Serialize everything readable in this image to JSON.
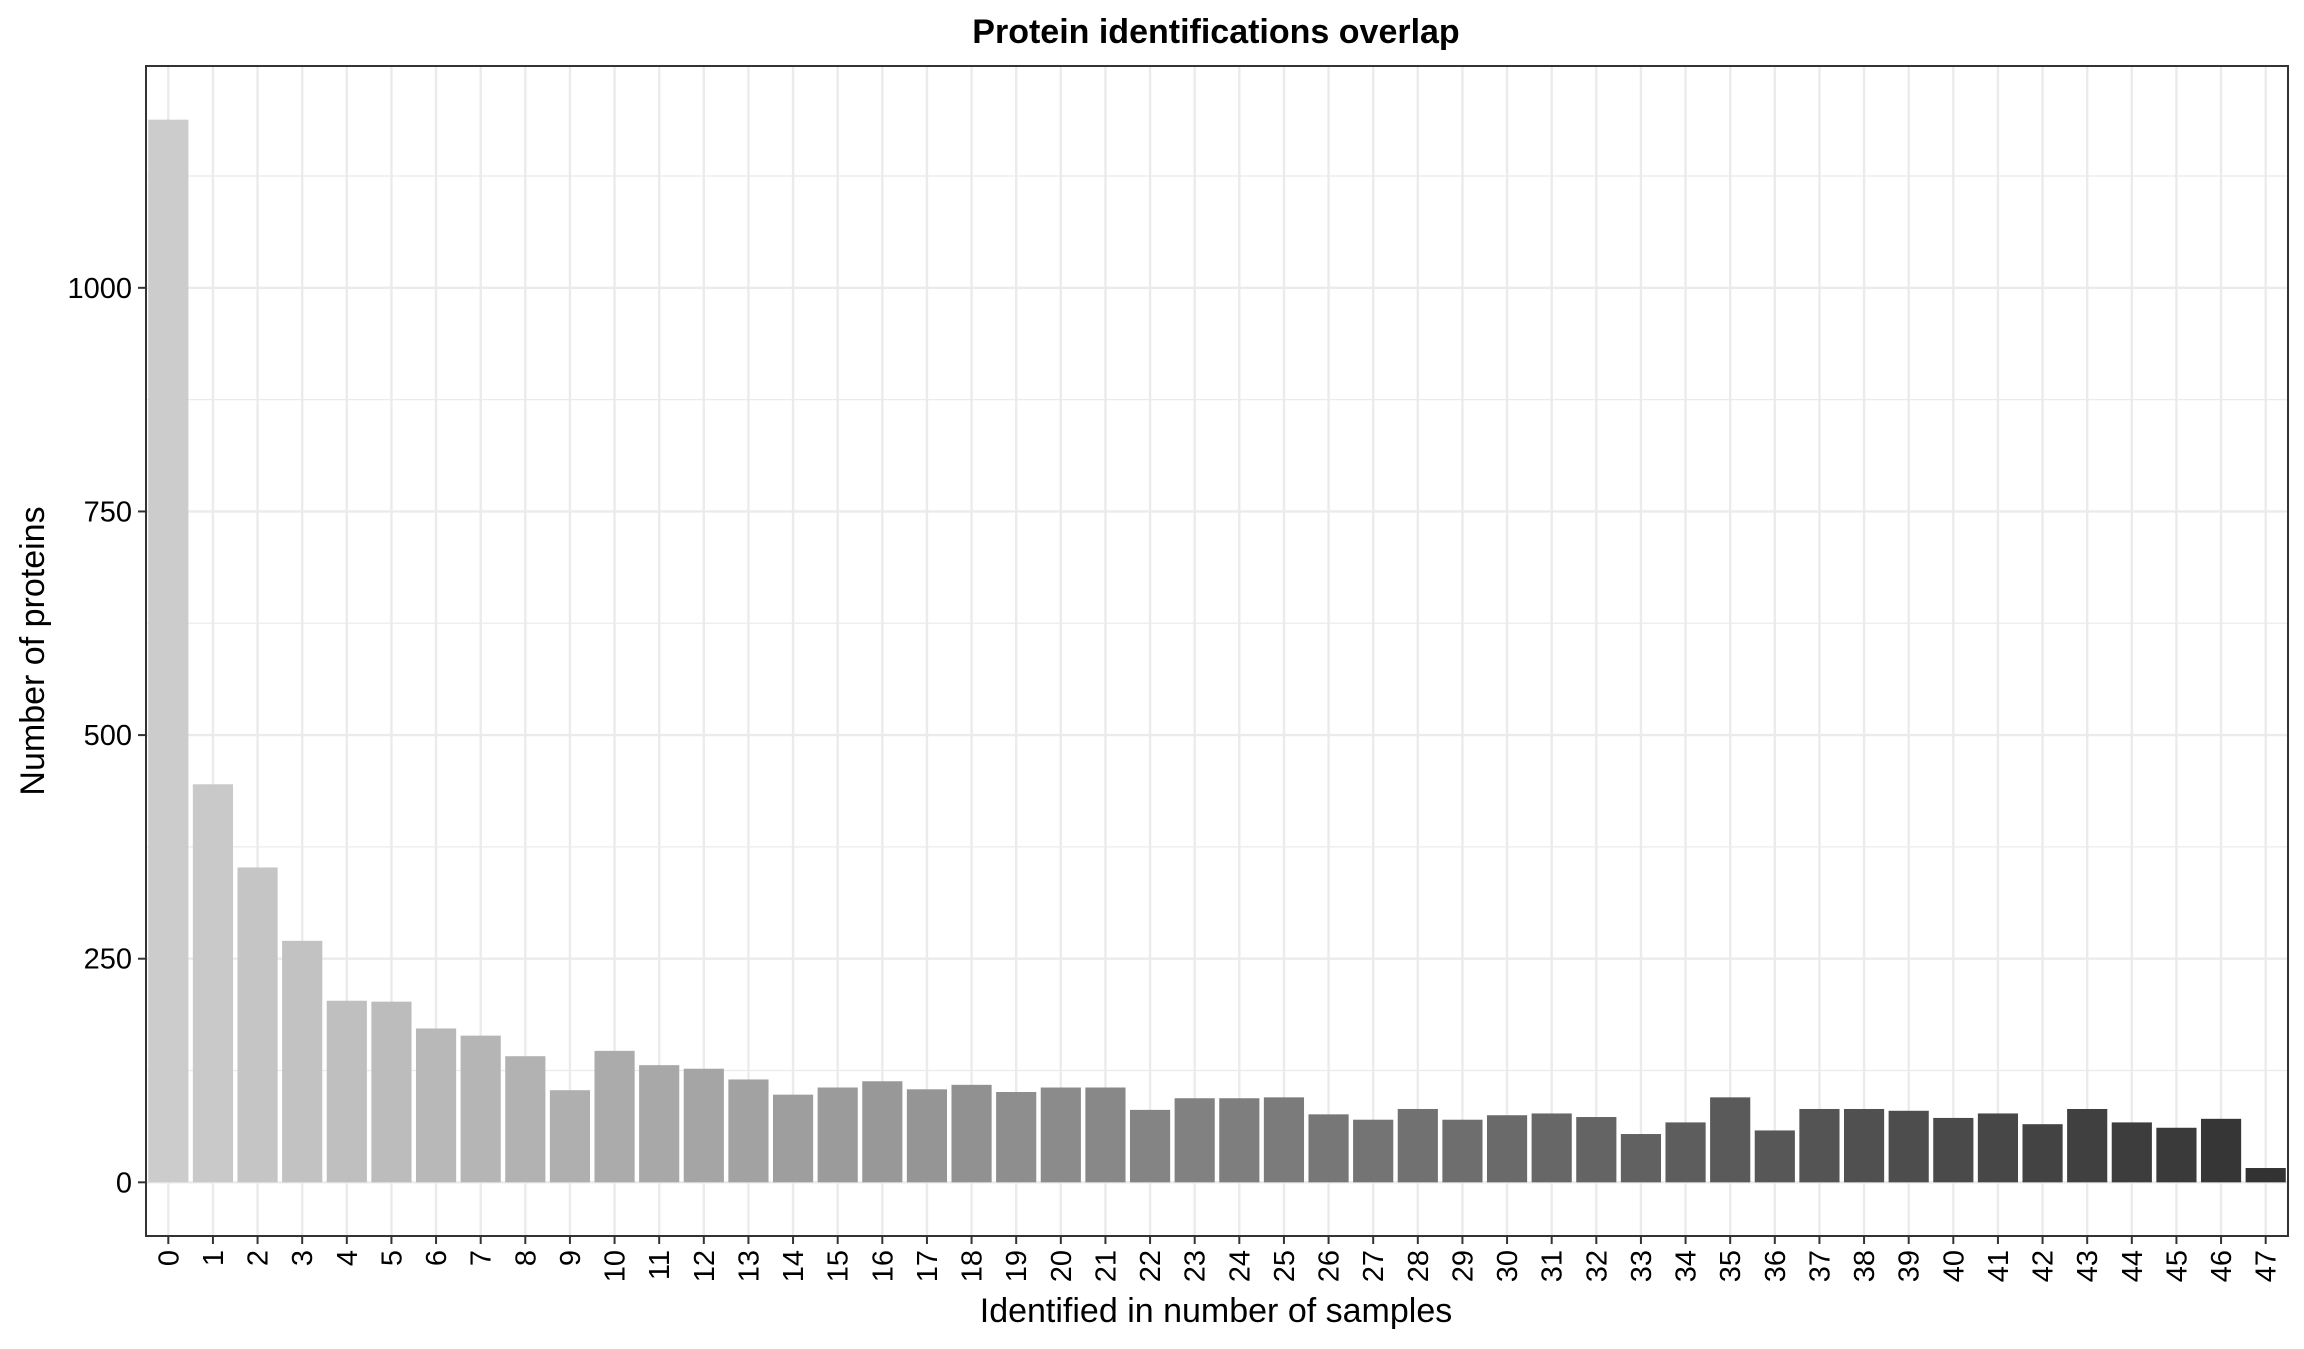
{
  "chart_data": {
    "type": "bar",
    "title": "Protein identifications overlap",
    "xlabel": "Identified in number of samples",
    "ylabel": "Number of proteins",
    "categories": [
      "0",
      "1",
      "2",
      "3",
      "4",
      "5",
      "6",
      "7",
      "8",
      "9",
      "10",
      "11",
      "12",
      "13",
      "14",
      "15",
      "16",
      "17",
      "18",
      "19",
      "20",
      "21",
      "22",
      "23",
      "24",
      "25",
      "26",
      "27",
      "28",
      "29",
      "30",
      "31",
      "32",
      "33",
      "34",
      "35",
      "36",
      "37",
      "38",
      "39",
      "40",
      "41",
      "42",
      "43",
      "44",
      "45",
      "46",
      "47"
    ],
    "values": [
      1188,
      445,
      352,
      270,
      203,
      202,
      172,
      164,
      141,
      103,
      147,
      131,
      127,
      115,
      98,
      106,
      113,
      104,
      109,
      101,
      106,
      106,
      81,
      94,
      94,
      95,
      76,
      70,
      82,
      70,
      75,
      77,
      73,
      54,
      67,
      95,
      58,
      82,
      82,
      80,
      72,
      77,
      65,
      82,
      67,
      61,
      71,
      16
    ],
    "ylim": [
      -60,
      1248
    ],
    "yticks": [
      0,
      250,
      500,
      750,
      1000
    ],
    "ytick_labels": [
      "0",
      "250",
      "500",
      "750",
      "1000"
    ],
    "grid": true,
    "colors": {
      "bar_light": "#cccccc",
      "bar_dark": "#333333",
      "grid": "#ebebeb",
      "panel_border": "#333333"
    }
  }
}
